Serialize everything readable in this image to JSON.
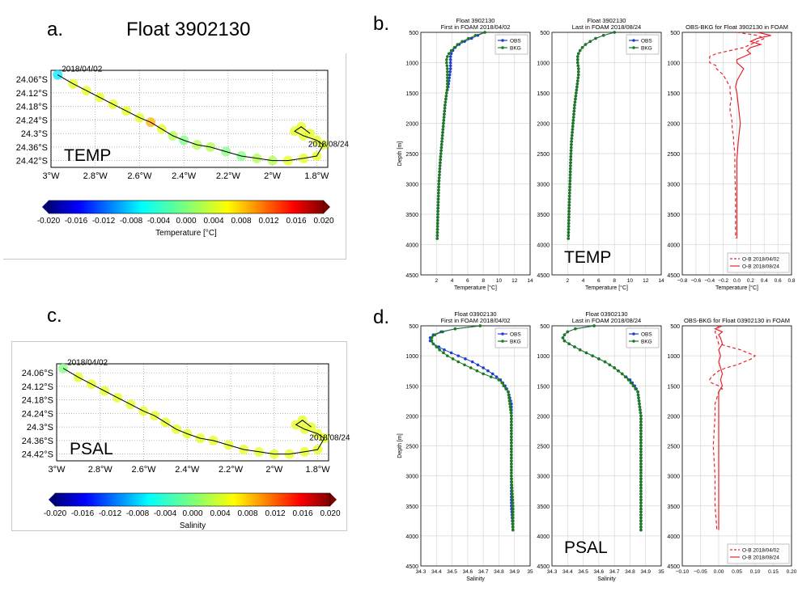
{
  "panel_labels": {
    "a": "a.",
    "b": "b.",
    "c": "c.",
    "d": "d."
  },
  "float_title": "Float 3902130",
  "chart_data": [
    {
      "id": "map_temp",
      "type": "scatter",
      "xlabel": "",
      "ylabel": "",
      "xlim": [
        -3.0,
        -1.75
      ],
      "ylim": [
        -24.45,
        -24.02
      ],
      "xticks": [
        "3°W",
        "2.8°W",
        "2.6°W",
        "2.4°W",
        "2.2°W",
        "2°W",
        "1.8°W"
      ],
      "yticks": [
        "24.06°S",
        "24.12°S",
        "24.18°S",
        "24.24°S",
        "24.3°S",
        "24.36°S",
        "24.42°S"
      ],
      "label": "TEMP",
      "start_label": "2018/04/02",
      "end_label": "2018/08/24",
      "x": [
        -2.97,
        -2.9,
        -2.84,
        -2.78,
        -2.72,
        -2.66,
        -2.6,
        -2.55,
        -2.5,
        -2.45,
        -2.4,
        -2.34,
        -2.28,
        -2.21,
        -2.14,
        -2.07,
        -2.0,
        -1.93,
        -1.86,
        -1.8,
        -1.77,
        -1.8,
        -1.86,
        -1.9,
        -1.87,
        -1.83
      ],
      "y": [
        -24.04,
        -24.08,
        -24.11,
        -24.14,
        -24.17,
        -24.2,
        -24.23,
        -24.25,
        -24.28,
        -24.31,
        -24.33,
        -24.35,
        -24.36,
        -24.38,
        -24.4,
        -24.41,
        -24.42,
        -24.42,
        -24.41,
        -24.4,
        -24.35,
        -24.33,
        -24.31,
        -24.29,
        -24.27,
        -24.3
      ],
      "values": [
        -0.006,
        0.004,
        0.004,
        0.004,
        0.004,
        0.004,
        0.004,
        0.008,
        0.004,
        0.002,
        0.0,
        0.002,
        0.002,
        0.0,
        0.0,
        0.002,
        0.002,
        0.004,
        0.004,
        0.004,
        0.004,
        0.004,
        0.004,
        0.004,
        0.004,
        0.004
      ],
      "colorbar": {
        "min": -0.02,
        "max": 0.02,
        "ticks": [
          "-0.020",
          "-0.016",
          "-0.012",
          "-0.008",
          "-0.004",
          "0.000",
          "0.004",
          "0.008",
          "0.012",
          "0.016",
          "0.020"
        ],
        "label": "Temperature [°C]"
      }
    },
    {
      "id": "map_psal",
      "type": "scatter",
      "xlabel": "",
      "ylabel": "",
      "xlim": [
        -3.0,
        -1.75
      ],
      "ylim": [
        -24.45,
        -24.02
      ],
      "xticks": [
        "3°W",
        "2.8°W",
        "2.6°W",
        "2.4°W",
        "2.2°W",
        "2°W",
        "1.8°W"
      ],
      "yticks": [
        "24.06°S",
        "24.12°S",
        "24.18°S",
        "24.24°S",
        "24.3°S",
        "24.36°S",
        "24.42°S"
      ],
      "label": "PSAL",
      "start_label": "2018/04/02",
      "end_label": "2018/08/24",
      "x": [
        -2.97,
        -2.9,
        -2.84,
        -2.78,
        -2.72,
        -2.66,
        -2.6,
        -2.55,
        -2.5,
        -2.45,
        -2.4,
        -2.34,
        -2.28,
        -2.21,
        -2.14,
        -2.07,
        -2.0,
        -1.93,
        -1.86,
        -1.8,
        -1.77,
        -1.8,
        -1.86,
        -1.9,
        -1.87,
        -1.83
      ],
      "y": [
        -24.04,
        -24.08,
        -24.11,
        -24.14,
        -24.17,
        -24.2,
        -24.23,
        -24.25,
        -24.28,
        -24.31,
        -24.33,
        -24.35,
        -24.36,
        -24.38,
        -24.4,
        -24.41,
        -24.42,
        -24.42,
        -24.41,
        -24.4,
        -24.35,
        -24.33,
        -24.31,
        -24.29,
        -24.27,
        -24.3
      ],
      "values": [
        0.0,
        0.004,
        0.004,
        0.004,
        0.004,
        0.004,
        0.004,
        0.004,
        0.004,
        0.004,
        0.004,
        0.004,
        0.004,
        0.004,
        0.004,
        0.004,
        0.004,
        0.004,
        0.004,
        0.004,
        0.004,
        0.004,
        0.004,
        0.004,
        0.004,
        0.004
      ],
      "colorbar": {
        "min": -0.02,
        "max": 0.02,
        "ticks": [
          "-0.020",
          "-0.016",
          "-0.012",
          "-0.008",
          "-0.004",
          "0.000",
          "0.004",
          "0.008",
          "0.012",
          "0.016",
          "0.020"
        ],
        "label": "Salinity"
      }
    },
    {
      "id": "temp_first",
      "type": "line",
      "title": "Float 3902130\nFirst in FOAM 2018/04/02",
      "xlabel": "Temperature [°C]",
      "ylabel": "Depth [m]",
      "xlim": [
        0,
        14
      ],
      "ylim": [
        4500,
        500
      ],
      "xticks": [
        2,
        4,
        6,
        8,
        10,
        12,
        14
      ],
      "yticks": [
        500,
        1000,
        1500,
        2000,
        2500,
        3000,
        3500,
        4000,
        4500
      ],
      "legend": "top-right",
      "series": [
        {
          "name": "OBS",
          "color": "#1f3fd0",
          "depth": [
            500,
            550,
            600,
            650,
            700,
            750,
            800,
            850,
            900,
            950,
            1000,
            1100,
            1200,
            1300,
            1400,
            1500,
            1700,
            2000,
            2300,
            2600,
            3000,
            3400,
            3900
          ],
          "values": [
            8.2,
            7.3,
            6.5,
            5.6,
            4.9,
            4.4,
            4.1,
            3.9,
            3.8,
            3.8,
            3.8,
            3.8,
            3.7,
            3.6,
            3.5,
            3.3,
            3.1,
            2.9,
            2.7,
            2.5,
            2.3,
            2.2,
            2.1
          ]
        },
        {
          "name": "BKG",
          "color": "#1e7a1e",
          "depth": [
            500,
            550,
            600,
            650,
            700,
            750,
            800,
            850,
            900,
            950,
            1000,
            1100,
            1200,
            1300,
            1400,
            1500,
            1700,
            2000,
            2300,
            2600,
            3000,
            3400,
            3900
          ],
          "values": [
            8.2,
            7.0,
            6.1,
            5.3,
            4.7,
            4.3,
            3.9,
            3.6,
            3.4,
            3.3,
            3.3,
            3.4,
            3.4,
            3.4,
            3.4,
            3.3,
            3.1,
            2.9,
            2.7,
            2.5,
            2.3,
            2.2,
            2.1
          ]
        }
      ]
    },
    {
      "id": "temp_last",
      "type": "line",
      "title": "Float 3902130\nLast in FOAM 2018/08/24",
      "xlabel": "Temperature [°C]",
      "ylabel": "",
      "xlim": [
        0,
        14
      ],
      "ylim": [
        4500,
        500
      ],
      "xticks": [
        2,
        4,
        6,
        8,
        10,
        12,
        14
      ],
      "yticks": [
        500,
        1000,
        1500,
        2000,
        2500,
        3000,
        3500,
        4000,
        4500
      ],
      "legend": "top-right",
      "label": "TEMP",
      "series": [
        {
          "name": "OBS",
          "color": "#1f3fd0",
          "depth": [
            500,
            550,
            600,
            650,
            700,
            750,
            800,
            850,
            900,
            950,
            1000,
            1100,
            1200,
            1300,
            1400,
            1500,
            1700,
            2000,
            2300,
            2600,
            3000,
            3400,
            3900
          ],
          "values": [
            8.0,
            6.6,
            5.6,
            4.9,
            4.3,
            3.9,
            3.6,
            3.4,
            3.3,
            3.3,
            3.3,
            3.4,
            3.4,
            3.3,
            3.2,
            3.1,
            2.9,
            2.7,
            2.5,
            2.4,
            2.3,
            2.2,
            2.1
          ]
        },
        {
          "name": "BKG",
          "color": "#1e7a1e",
          "depth": [
            500,
            550,
            600,
            650,
            700,
            750,
            800,
            850,
            900,
            950,
            1000,
            1100,
            1200,
            1300,
            1400,
            1500,
            1700,
            2000,
            2300,
            2600,
            3000,
            3400,
            3900
          ],
          "values": [
            8.0,
            6.6,
            5.6,
            4.9,
            4.3,
            3.9,
            3.6,
            3.4,
            3.3,
            3.3,
            3.3,
            3.4,
            3.4,
            3.3,
            3.2,
            3.1,
            2.9,
            2.7,
            2.5,
            2.4,
            2.3,
            2.2,
            2.1
          ]
        }
      ]
    },
    {
      "id": "temp_omb",
      "type": "line",
      "title": "OBS-BKG for Float 3902130 in FOAM",
      "xlabel": "Temperature [°C]",
      "ylabel": "",
      "xlim": [
        -0.8,
        0.8
      ],
      "ylim": [
        4500,
        500
      ],
      "xticks": [
        -0.8,
        -0.6,
        -0.4,
        -0.2,
        0.0,
        0.2,
        0.4,
        0.6,
        0.8
      ],
      "yticks": [
        500,
        1000,
        1500,
        2000,
        2500,
        3000,
        3500,
        4000,
        4500
      ],
      "legend": "bottom-right",
      "series": [
        {
          "name": "O-B 2018/04/02",
          "color": "#e8232a",
          "dash": true,
          "depth": [
            500,
            550,
            600,
            650,
            700,
            750,
            800,
            850,
            900,
            950,
            1000,
            1050,
            1100,
            1200,
            1300,
            1400,
            1500,
            1600,
            1700,
            1800,
            1900,
            2000,
            2100,
            2200,
            2300,
            2500,
            2800,
            3200,
            3600,
            3900
          ],
          "values": [
            0.0,
            0.3,
            0.4,
            0.3,
            0.2,
            0.1,
            -0.1,
            -0.3,
            -0.4,
            -0.4,
            -0.4,
            -0.3,
            -0.3,
            -0.2,
            -0.15,
            -0.1,
            -0.1,
            -0.08,
            -0.1,
            -0.1,
            -0.08,
            -0.07,
            -0.07,
            -0.05,
            -0.05,
            -0.03,
            -0.03,
            -0.02,
            -0.02,
            -0.02
          ]
        },
        {
          "name": "O-B 2018/08/24",
          "color": "#e8232a",
          "dash": false,
          "depth": [
            500,
            550,
            600,
            650,
            700,
            750,
            800,
            850,
            900,
            950,
            1000,
            1100,
            1200,
            1300,
            1400,
            1500,
            1700,
            2000,
            2300,
            2600,
            3000,
            3400,
            3900
          ],
          "values": [
            0.3,
            0.5,
            0.3,
            0.2,
            0.35,
            0.2,
            0.15,
            0.2,
            0.1,
            0.0,
            0.0,
            0.1,
            0.05,
            0.0,
            -0.02,
            0.0,
            0.02,
            0.05,
            0.02,
            0.0,
            0.0,
            0.0,
            0.0
          ]
        }
      ]
    },
    {
      "id": "psal_first",
      "type": "line",
      "title": "Float 03902130\nFirst in FOAM 2018/04/02",
      "xlabel": "Salinity",
      "ylabel": "Depth [m]",
      "xlim": [
        34.3,
        35.0
      ],
      "ylim": [
        4500,
        500
      ],
      "xticks": [
        34.3,
        34.4,
        34.5,
        34.6,
        34.7,
        34.8,
        34.9,
        35.0
      ],
      "yticks": [
        500,
        1000,
        1500,
        2000,
        2500,
        3000,
        3500,
        4000,
        4500
      ],
      "legend": "top-right",
      "series": [
        {
          "name": "OBS",
          "color": "#1f3fd0",
          "depth": [
            500,
            550,
            600,
            650,
            700,
            750,
            800,
            900,
            1000,
            1100,
            1200,
            1300,
            1400,
            1500,
            1600,
            1800,
            2000,
            2500,
            3000,
            3500,
            3900
          ],
          "values": [
            34.68,
            34.52,
            34.43,
            34.38,
            34.36,
            34.36,
            34.38,
            34.45,
            34.54,
            34.63,
            34.7,
            34.76,
            34.81,
            34.84,
            34.86,
            34.88,
            34.88,
            34.88,
            34.88,
            34.88,
            34.89
          ]
        },
        {
          "name": "BKG",
          "color": "#1e7a1e",
          "depth": [
            500,
            550,
            600,
            650,
            700,
            750,
            800,
            900,
            1000,
            1100,
            1200,
            1300,
            1400,
            1450,
            1500,
            1600,
            1800,
            2000,
            2500,
            3000,
            3500,
            3900
          ],
          "values": [
            34.68,
            34.52,
            34.44,
            34.39,
            34.37,
            34.37,
            34.38,
            34.42,
            34.47,
            34.54,
            34.62,
            34.7,
            34.8,
            34.82,
            34.83,
            34.86,
            34.87,
            34.88,
            34.88,
            34.88,
            34.89,
            34.89
          ]
        }
      ]
    },
    {
      "id": "psal_last",
      "type": "line",
      "title": "Float 03902130\nLast in FOAM 2018/08/24",
      "xlabel": "Salinity",
      "ylabel": "",
      "xlim": [
        34.3,
        35.0
      ],
      "ylim": [
        4500,
        500
      ],
      "xticks": [
        34.3,
        34.4,
        34.5,
        34.6,
        34.7,
        34.8,
        34.9,
        35.0
      ],
      "yticks": [
        500,
        1000,
        1500,
        2000,
        2500,
        3000,
        3500,
        4000,
        4500
      ],
      "legend": "top-right",
      "label": "PSAL",
      "series": [
        {
          "name": "OBS",
          "color": "#1f3fd0",
          "depth": [
            500,
            550,
            600,
            650,
            700,
            750,
            800,
            900,
            1000,
            1100,
            1200,
            1300,
            1400,
            1500,
            1600,
            1800,
            2000,
            2500,
            3000,
            3500,
            3900
          ],
          "values": [
            34.57,
            34.45,
            34.4,
            34.38,
            34.37,
            34.38,
            34.41,
            34.48,
            34.56,
            34.64,
            34.7,
            34.75,
            34.8,
            34.83,
            34.85,
            34.86,
            34.87,
            34.87,
            34.87,
            34.87,
            34.87
          ]
        },
        {
          "name": "BKG",
          "color": "#1e7a1e",
          "depth": [
            500,
            550,
            600,
            650,
            700,
            750,
            800,
            900,
            1000,
            1100,
            1200,
            1300,
            1400,
            1500,
            1600,
            1800,
            2000,
            2500,
            3000,
            3500,
            3900
          ],
          "values": [
            34.57,
            34.45,
            34.4,
            34.38,
            34.37,
            34.38,
            34.41,
            34.48,
            34.56,
            34.64,
            34.7,
            34.75,
            34.79,
            34.82,
            34.85,
            34.86,
            34.87,
            34.87,
            34.87,
            34.87,
            34.87
          ]
        }
      ]
    },
    {
      "id": "psal_omb",
      "type": "line",
      "title": "OBS-BKG for Float 03902130 in FOAM",
      "xlabel": "",
      "ylabel": "",
      "xlim": [
        -0.1,
        0.2
      ],
      "ylim": [
        4500,
        500
      ],
      "xticks": [
        -0.1,
        -0.05,
        0.0,
        0.05,
        0.1,
        0.15,
        0.2
      ],
      "yticks": [
        500,
        1000,
        1500,
        2000,
        2500,
        3000,
        3500,
        4000,
        4500
      ],
      "legend": "bottom-right",
      "series": [
        {
          "name": "O-B 2018/04/02",
          "color": "#e8232a",
          "dash": true,
          "depth": [
            500,
            600,
            700,
            800,
            850,
            900,
            950,
            1000,
            1050,
            1100,
            1150,
            1200,
            1250,
            1300,
            1350,
            1400,
            1450,
            1500,
            1550,
            1600,
            1700,
            1800,
            2000,
            2500,
            3000,
            3500,
            3900
          ],
          "values": [
            0.0,
            -0.01,
            -0.005,
            0.0,
            0.03,
            0.06,
            0.08,
            0.1,
            0.09,
            0.07,
            0.05,
            0.02,
            0.0,
            -0.01,
            -0.02,
            -0.025,
            -0.02,
            0.0,
            0.01,
            0.0,
            -0.005,
            -0.01,
            -0.01,
            -0.015,
            -0.01,
            -0.01,
            -0.005
          ]
        },
        {
          "name": "O-B 2018/08/24",
          "color": "#e8232a",
          "dash": false,
          "depth": [
            500,
            550,
            600,
            650,
            700,
            800,
            900,
            1000,
            1100,
            1200,
            1300,
            1400,
            1500,
            1600,
            1800,
            2000,
            2500,
            3000,
            3500,
            3900
          ],
          "values": [
            0.01,
            -0.01,
            0.01,
            0.0,
            0.005,
            0.01,
            0.0,
            0.005,
            0.0,
            0.005,
            0.01,
            0.005,
            0.01,
            0.0,
            0.0,
            0.0,
            0.0,
            0.0,
            0.0,
            0.0
          ]
        }
      ]
    }
  ]
}
